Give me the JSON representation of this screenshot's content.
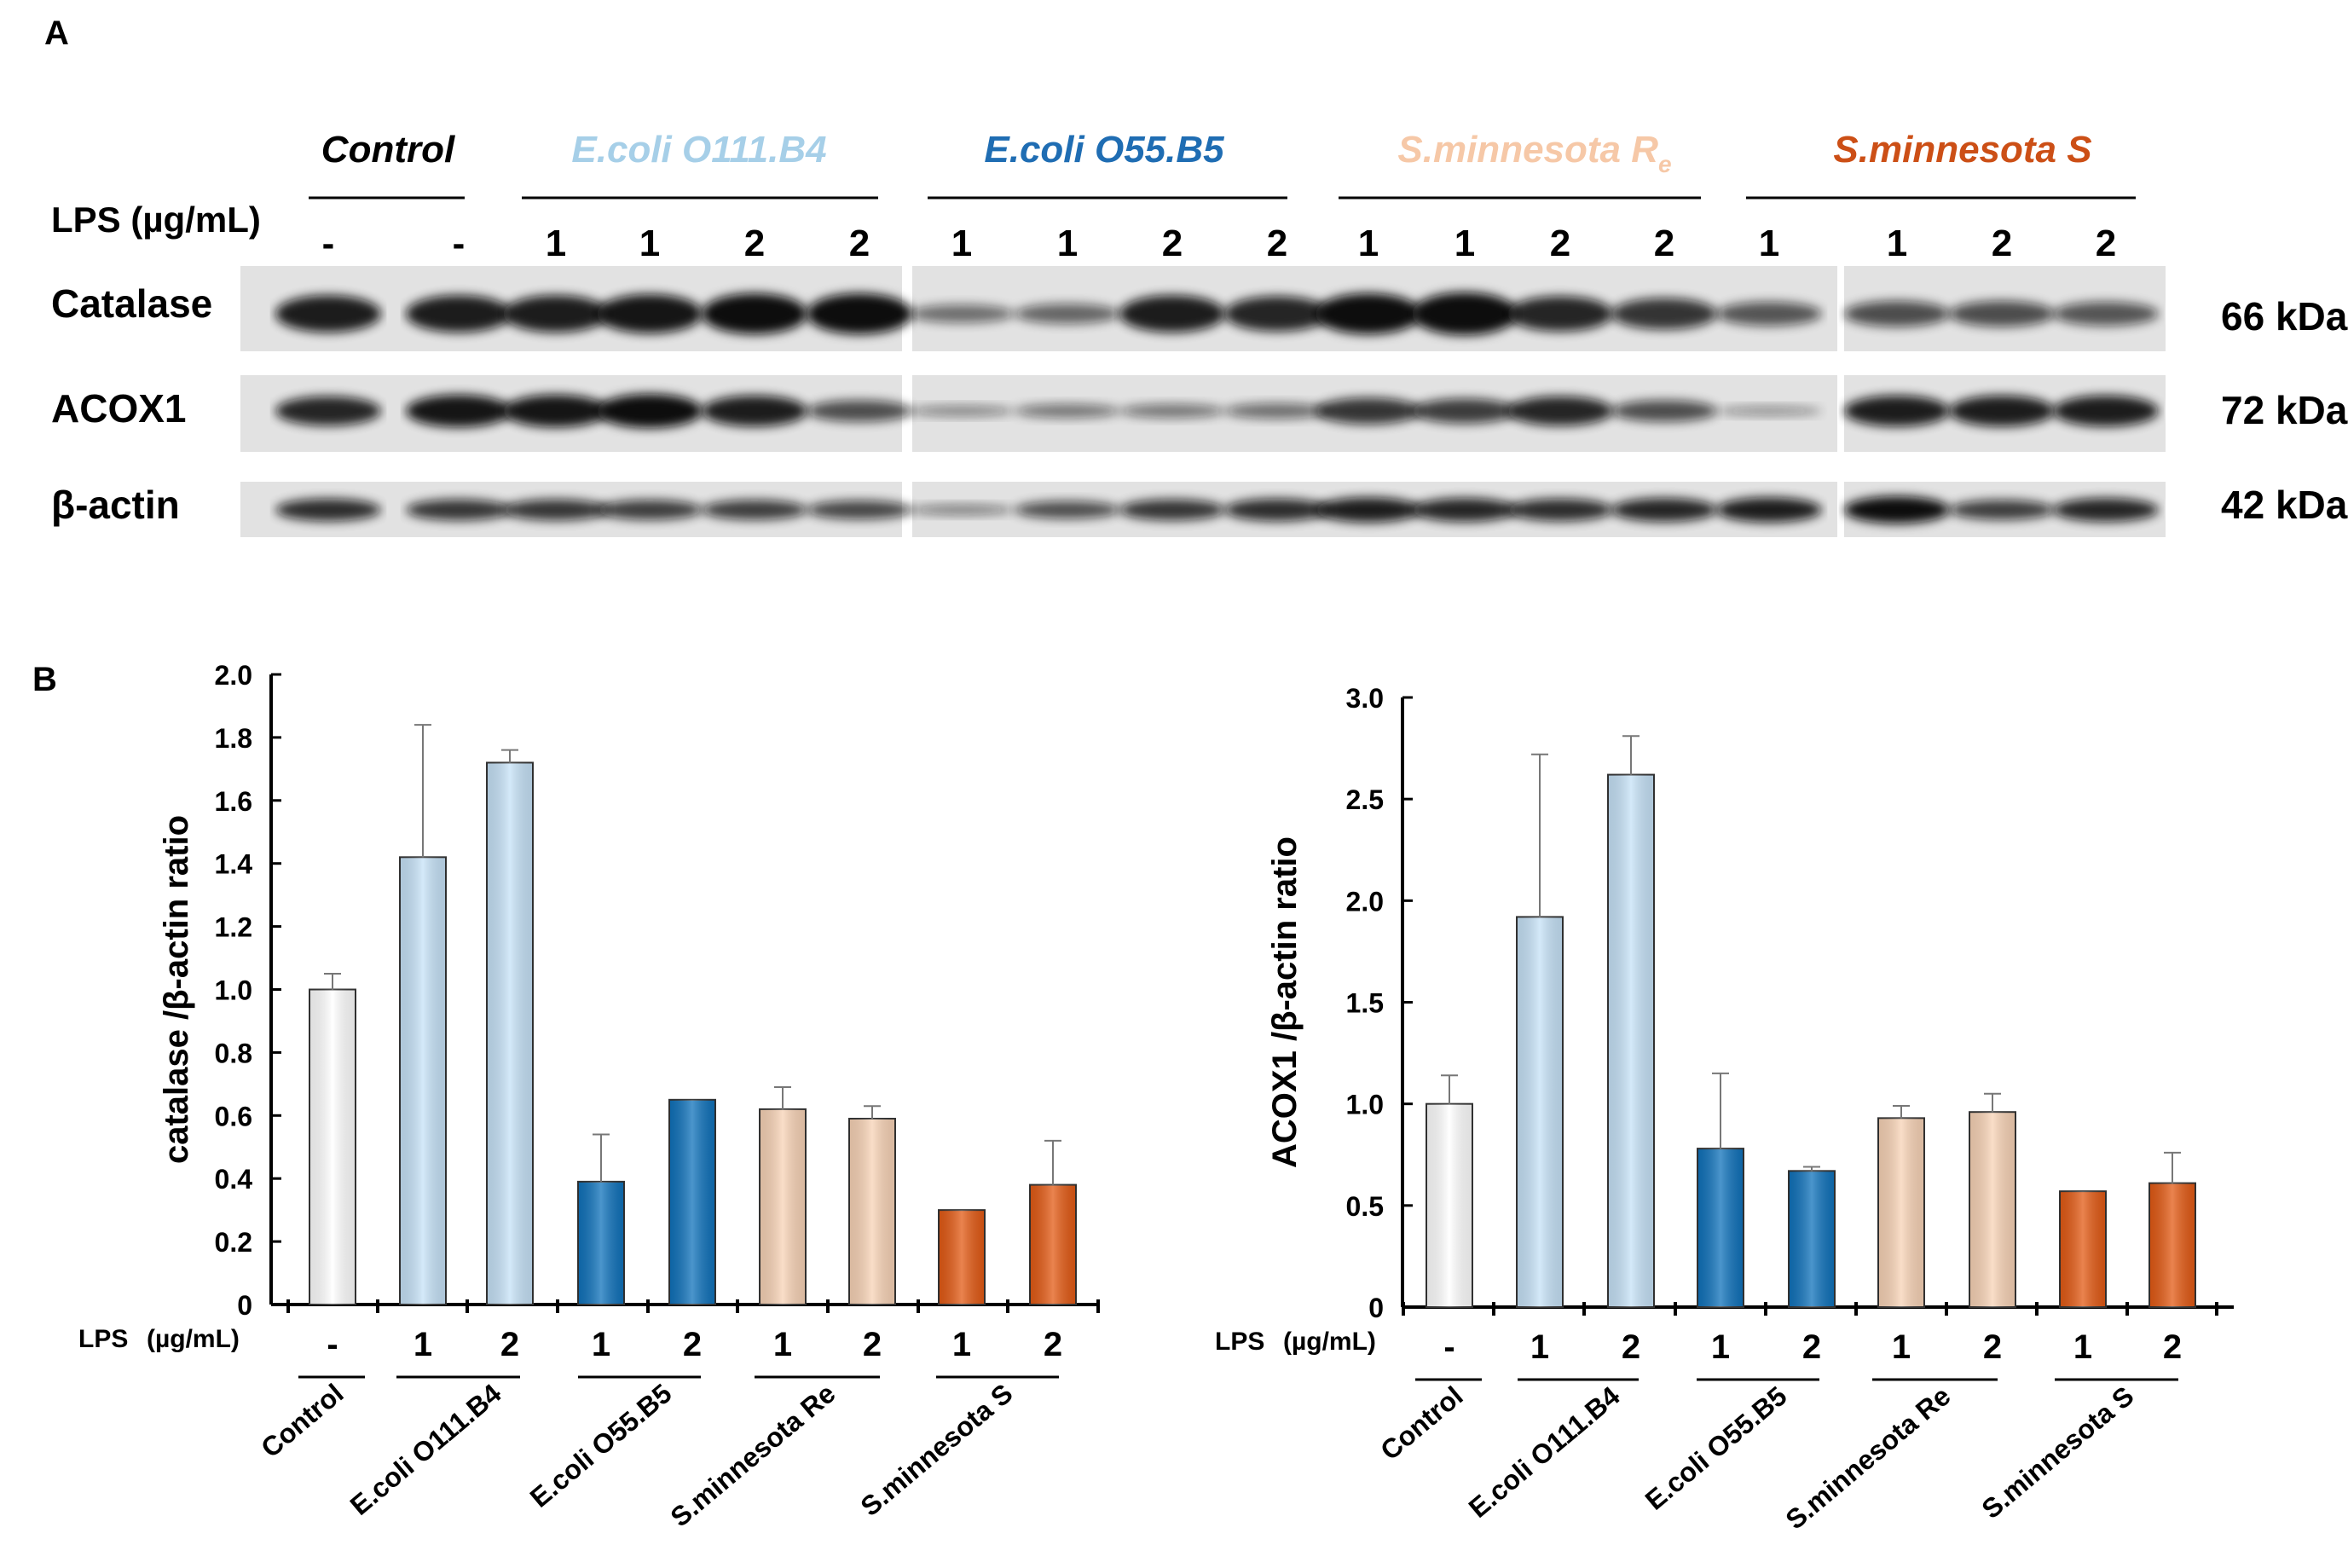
{
  "panels": {
    "a": "A",
    "b": "B"
  },
  "western": {
    "groups": [
      {
        "name": "Control",
        "color": "#000000"
      },
      {
        "name": "E.coli O111.B4",
        "color": "#a6cfe8"
      },
      {
        "name": "E.coli O55.B5",
        "color": "#1f6db3"
      },
      {
        "name": "S.minnesota R",
        "sub": "e",
        "color": "#f6c8a7"
      },
      {
        "name": "S.minnesota S",
        "color": "#cc4f16"
      }
    ],
    "lps_label": "LPS (µg/mL)",
    "lane_doses": [
      "-",
      "-",
      "1",
      "1",
      "2",
      "2",
      "1",
      "1",
      "2",
      "2",
      "1",
      "1",
      "2",
      "2",
      "1",
      "1",
      "2",
      "2"
    ],
    "proteins": [
      {
        "label": "Catalase",
        "kda": "66 kDa"
      },
      {
        "label": "ACOX1",
        "kda": "72 kDa"
      },
      {
        "label": "β-actin",
        "kda": "42 kDa"
      }
    ]
  },
  "chart_data": [
    {
      "type": "bar",
      "ylabel": "catalase /β-actin ratio",
      "xlabel_prefix": "LPS",
      "xlabel_unit": "(µg/mL)",
      "ylim": [
        0,
        2.0
      ],
      "yticks": [
        "0",
        "0.2",
        "0.4",
        "0.6",
        "0.8",
        "1.0",
        "1.2",
        "1.4",
        "1.6",
        "1.8",
        "2.0"
      ],
      "dose_labels": [
        "-",
        "1",
        "2",
        "1",
        "2",
        "1",
        "2",
        "1",
        "2"
      ],
      "values": [
        1.0,
        1.42,
        1.72,
        0.39,
        0.65,
        0.62,
        0.59,
        0.3,
        0.38
      ],
      "errors": [
        0.05,
        0.42,
        0.04,
        0.15,
        0.0,
        0.07,
        0.04,
        0.0,
        0.14
      ],
      "colors": [
        "#ffffff",
        "#c6e2f7",
        "#c6e2f7",
        "#0f72bb",
        "#0f72bb",
        "#f8d3b6",
        "#f8d3b6",
        "#e35a14",
        "#e35a14"
      ],
      "groups": [
        "Control",
        "E.coli O111.B4",
        "E.coli O55.B5",
        "S.minnesota Re",
        "S.minnesota S"
      ]
    },
    {
      "type": "bar",
      "ylabel": "ACOX1 /β-actin ratio",
      "xlabel_prefix": "LPS",
      "xlabel_unit": "(µg/mL)",
      "ylim": [
        0,
        3.0
      ],
      "yticks": [
        "0",
        "0.5",
        "1.0",
        "1.5",
        "2.0",
        "2.5",
        "3.0"
      ],
      "dose_labels": [
        "-",
        "1",
        "2",
        "1",
        "2",
        "1",
        "2",
        "1",
        "2"
      ],
      "values": [
        1.0,
        1.92,
        2.62,
        0.78,
        0.67,
        0.93,
        0.96,
        0.57,
        0.61
      ],
      "errors": [
        0.14,
        0.8,
        0.19,
        0.37,
        0.02,
        0.06,
        0.09,
        0.0,
        0.15
      ],
      "colors": [
        "#ffffff",
        "#c6e2f7",
        "#c6e2f7",
        "#0f72bb",
        "#0f72bb",
        "#f8d3b6",
        "#f8d3b6",
        "#e35a14",
        "#e35a14"
      ],
      "groups": [
        "Control",
        "E.coli O111.B4",
        "E.coli O55.B5",
        "S.minnesota Re",
        "S.minnesota S"
      ]
    }
  ]
}
